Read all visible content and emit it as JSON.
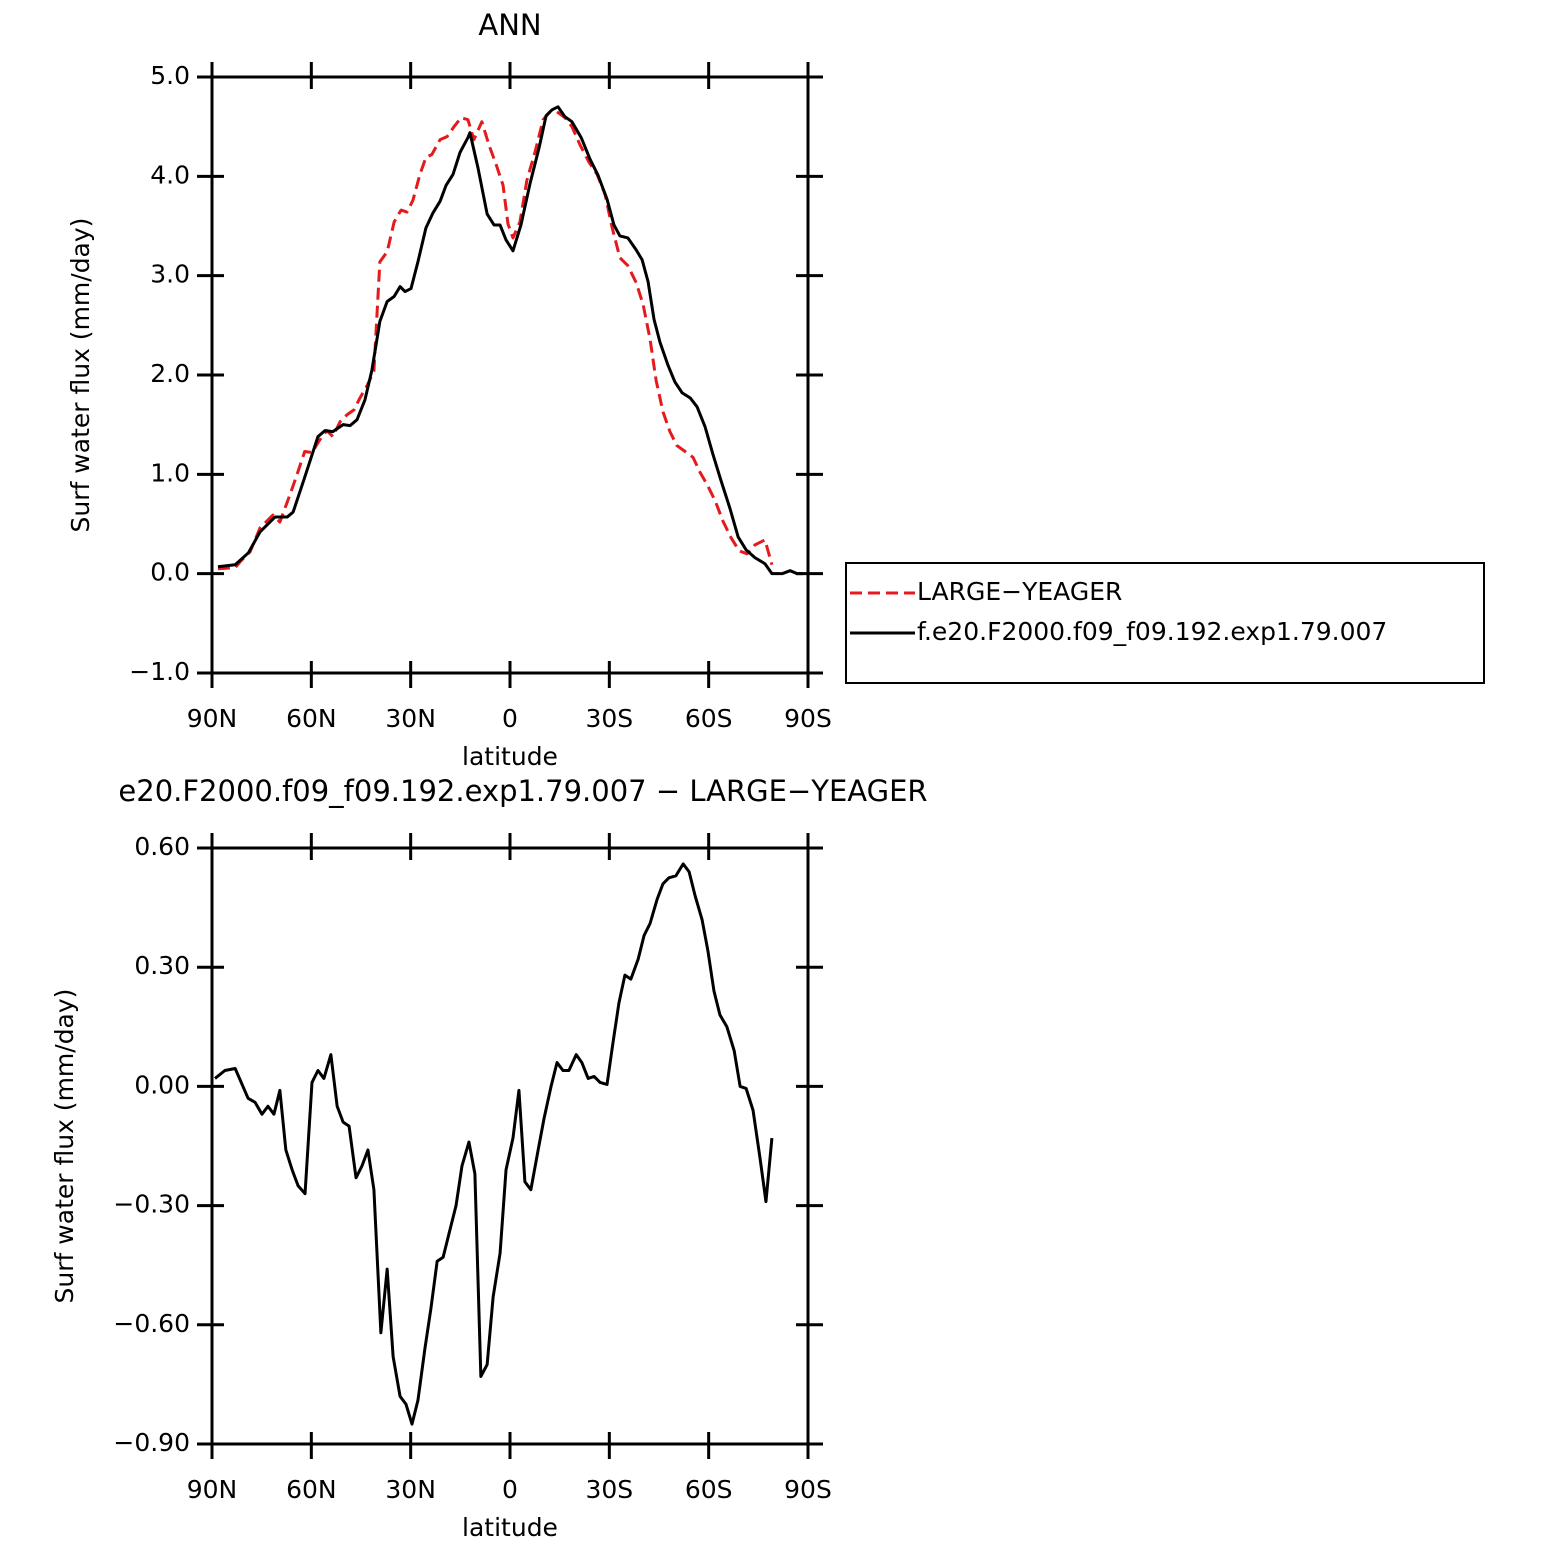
{
  "chart_data": [
    {
      "type": "line",
      "title": "ANN",
      "xlabel": "latitude",
      "ylabel": "Surf water flux (mm/day)",
      "xlim": [
        90,
        -90
      ],
      "xticks": [
        {
          "value": 90,
          "label": "90N"
        },
        {
          "value": 60,
          "label": "60N"
        },
        {
          "value": 30,
          "label": "30N"
        },
        0,
        {
          "value": -30,
          "label": "30S"
        },
        {
          "value": -60,
          "label": "60S"
        },
        {
          "value": -90,
          "label": "90S"
        }
      ],
      "ylim": [
        -1,
        5
      ],
      "yticks": [
        {
          "value": -1,
          "label": "−1.0"
        },
        {
          "value": 0,
          "label": "0.0"
        },
        {
          "value": 1,
          "label": "1.0"
        },
        {
          "value": 2,
          "label": "2.0"
        },
        {
          "value": 3,
          "label": "3.0"
        },
        {
          "value": 4,
          "label": "4.0"
        },
        {
          "value": 5,
          "label": "5.0"
        }
      ],
      "legend": "outside-right",
      "series": [
        {
          "name": "LARGE−YEAGER",
          "color": "#e41a1c",
          "linestyle": "dashed",
          "x": [
            88.2,
            83,
            81.5,
            78.5,
            75.5,
            71.6,
            69.5,
            66.4,
            64.3,
            62,
            59.8,
            57.4,
            55.3,
            53.5,
            51.3,
            49.2,
            47.1,
            45.3,
            43.2,
            41.1,
            39.3,
            37.1,
            35,
            32.9,
            31.1,
            29.3,
            27.2,
            25.4,
            23.6,
            21.1,
            19,
            16.9,
            14.8,
            12.7,
            10.9,
            8.5,
            6.3,
            4.2,
            2.1,
            0.6,
            -0.9,
            -3,
            -5.1,
            -7.6,
            -10,
            -12.1,
            -14.2,
            -16.6,
            -18.7,
            -21.1,
            -23.9,
            -26.3,
            -28.7,
            -30.8,
            -33.2,
            -35.6,
            -38.1,
            -40.2,
            -42.3,
            -44.1,
            -46.2,
            -48.3,
            -50.4,
            -52.9,
            -55.3,
            -57.4,
            -59.8,
            -62,
            -64.3,
            -66.8,
            -69.2,
            -71.6,
            -74,
            -77,
            -79.1
          ],
          "values": [
            0.05,
            0.06,
            0.12,
            0.22,
            0.46,
            0.59,
            0.52,
            0.8,
            1.0,
            1.23,
            1.22,
            1.35,
            1.44,
            1.38,
            1.53,
            1.6,
            1.65,
            1.77,
            1.89,
            2.04,
            3.14,
            3.24,
            3.54,
            3.66,
            3.64,
            3.76,
            4.02,
            4.19,
            4.22,
            4.37,
            4.4,
            4.5,
            4.59,
            4.57,
            4.37,
            4.55,
            4.31,
            4.12,
            3.91,
            3.52,
            3.38,
            3.54,
            3.96,
            4.25,
            4.57,
            4.65,
            4.65,
            4.59,
            4.5,
            4.32,
            4.14,
            4.02,
            3.82,
            3.49,
            3.18,
            3.1,
            2.93,
            2.71,
            2.36,
            1.95,
            1.63,
            1.43,
            1.29,
            1.23,
            1.17,
            1.02,
            0.88,
            0.73,
            0.53,
            0.36,
            0.23,
            0.2,
            0.29,
            0.34,
            0.09
          ]
        },
        {
          "name": "f.e20.F2000.f09_f09.192.exp1.79.007",
          "color": "#000000",
          "linestyle": "solid",
          "x": [
            88.2,
            83,
            79,
            75.5,
            71,
            67.3,
            65.5,
            62,
            58,
            55.9,
            53.5,
            50.4,
            48.3,
            46.2,
            43.8,
            41.7,
            39.3,
            37.1,
            35,
            33.2,
            31.7,
            29.9,
            27.8,
            25.4,
            23.3,
            21.1,
            19.3,
            17.2,
            15.1,
            12.7,
            12.1,
            9.7,
            6.9,
            4.8,
            3,
            1.2,
            -0.9,
            -3.3,
            -6,
            -8.8,
            -10.9,
            -12.7,
            -14.5,
            -16.6,
            -18.7,
            -21.5,
            -24.2,
            -26.6,
            -29.3,
            -31.4,
            -33.2,
            -35.6,
            -38.1,
            -39.9,
            -41.7,
            -43.5,
            -45.3,
            -47.7,
            -49.8,
            -52,
            -54.4,
            -56.5,
            -58.9,
            -61.3,
            -63.7,
            -66.4,
            -68.9,
            -71.3,
            -74,
            -77,
            -79.1,
            -82.2,
            -84.6,
            -86.7,
            -88.5
          ],
          "values": [
            0.07,
            0.09,
            0.21,
            0.42,
            0.57,
            0.57,
            0.62,
            0.97,
            1.38,
            1.44,
            1.43,
            1.5,
            1.49,
            1.55,
            1.75,
            2.05,
            2.54,
            2.74,
            2.79,
            2.89,
            2.84,
            2.87,
            3.14,
            3.48,
            3.63,
            3.75,
            3.91,
            4.02,
            4.24,
            4.39,
            4.44,
            4.09,
            3.62,
            3.51,
            3.51,
            3.36,
            3.25,
            3.51,
            3.92,
            4.29,
            4.61,
            4.67,
            4.7,
            4.6,
            4.55,
            4.39,
            4.17,
            4.01,
            3.77,
            3.51,
            3.4,
            3.38,
            3.26,
            3.16,
            2.94,
            2.56,
            2.33,
            2.1,
            1.93,
            1.82,
            1.77,
            1.68,
            1.48,
            1.2,
            0.94,
            0.66,
            0.37,
            0.24,
            0.16,
            0.1,
            0,
            0,
            0.03,
            0,
            0
          ]
        }
      ]
    },
    {
      "type": "line",
      "title": "e20.F2000.f09_f09.192.exp1.79.007 − LARGE−YEAGER",
      "xlabel": "latitude",
      "ylabel": "Surf water flux (mm/day)",
      "xlim": [
        90,
        -90
      ],
      "xticks": [
        {
          "value": 90,
          "label": "90N"
        },
        {
          "value": 60,
          "label": "60N"
        },
        {
          "value": 30,
          "label": "30N"
        },
        0,
        {
          "value": -30,
          "label": "30S"
        },
        {
          "value": -60,
          "label": "60S"
        },
        {
          "value": -90,
          "label": "90S"
        }
      ],
      "ylim": [
        -0.9,
        0.6
      ],
      "yticks": [
        {
          "value": -0.9,
          "label": "−0.90"
        },
        {
          "value": -0.6,
          "label": "−0.60"
        },
        {
          "value": -0.3,
          "label": "−0.30"
        },
        {
          "value": 0,
          "label": "0.00"
        },
        {
          "value": 0.3,
          "label": "0.30"
        },
        {
          "value": 0.6,
          "label": "0.60"
        }
      ],
      "series": [
        {
          "color": "#000000",
          "linestyle": "solid",
          "x": [
            89.1,
            86.1,
            83,
            79.1,
            77,
            74.9,
            73.1,
            71.3,
            69.5,
            67.7,
            65.8,
            64,
            61.9,
            59.8,
            58,
            56.2,
            54.1,
            52.2,
            50.4,
            48.6,
            46.5,
            44.7,
            42.9,
            41.1,
            39,
            37.1,
            35.3,
            33.2,
            31.4,
            29.6,
            27.8,
            25.7,
            23.9,
            22,
            20.2,
            18.4,
            16.3,
            14.5,
            12.4,
            10.6,
            8.8,
            6.9,
            5.1,
            3,
            1.2,
            -0.9,
            -2.7,
            -4.5,
            -6.3,
            -8.5,
            -10.3,
            -12.4,
            -14.2,
            -16,
            -17.8,
            -20,
            -21.7,
            -23.6,
            -25.4,
            -27.2,
            -29.3,
            -31.1,
            -32.9,
            -34.7,
            -36.5,
            -38.7,
            -40.5,
            -42.3,
            -44.4,
            -46.2,
            -48,
            -50.1,
            -52.3,
            -54.1,
            -55.9,
            -58,
            -59.8,
            -61.6,
            -63.4,
            -65.5,
            -67.7,
            -69.5,
            -71.3,
            -73.4,
            -75.5,
            -77.3,
            -79.1
          ],
          "values": [
            0.02,
            0.04,
            0.045,
            -0.03,
            -0.04,
            -0.07,
            -0.05,
            -0.07,
            -0.01,
            -0.16,
            -0.21,
            -0.25,
            -0.27,
            0.01,
            0.04,
            0.02,
            0.08,
            -0.05,
            -0.09,
            -0.1,
            -0.23,
            -0.2,
            -0.16,
            -0.26,
            -0.62,
            -0.46,
            -0.68,
            -0.78,
            -0.8,
            -0.85,
            -0.79,
            -0.66,
            -0.56,
            -0.44,
            -0.43,
            -0.37,
            -0.3,
            -0.2,
            -0.14,
            -0.22,
            -0.73,
            -0.7,
            -0.53,
            -0.42,
            -0.21,
            -0.13,
            -0.01,
            -0.24,
            -0.26,
            -0.16,
            -0.08,
            0,
            0.06,
            0.04,
            0.04,
            0.08,
            0.06,
            0.02,
            0.025,
            0.01,
            0.005,
            0.11,
            0.21,
            0.28,
            0.27,
            0.32,
            0.38,
            0.41,
            0.47,
            0.51,
            0.525,
            0.53,
            0.56,
            0.54,
            0.48,
            0.42,
            0.34,
            0.24,
            0.18,
            0.15,
            0.09,
            0,
            -0.005,
            -0.06,
            -0.18,
            -0.29,
            -0.13
          ]
        }
      ]
    }
  ]
}
